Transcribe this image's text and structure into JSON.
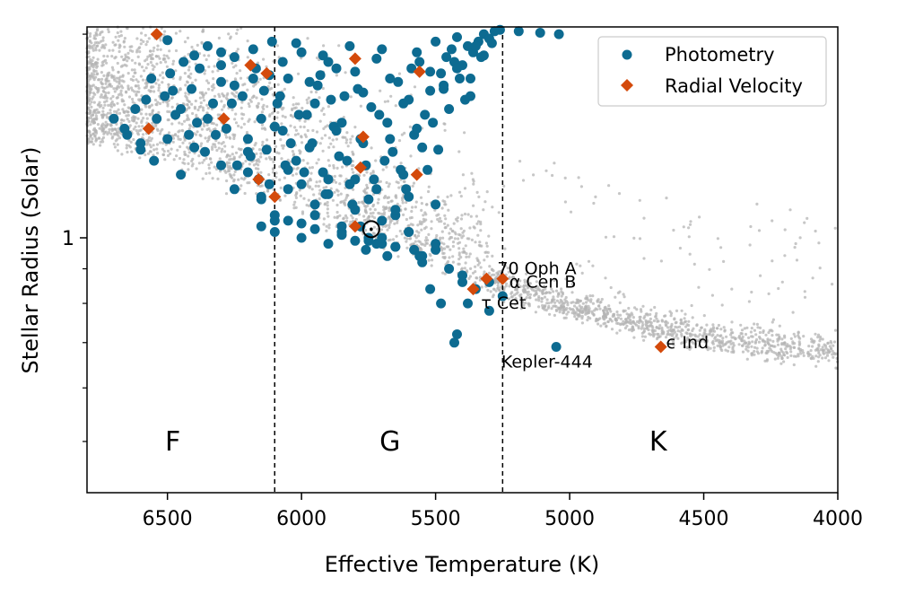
{
  "chart_data": {
    "type": "scatter",
    "xlabel": "Effective Temperature (K)",
    "ylabel": "Stellar Radius (Solar)",
    "xlim": [
      6800,
      4000
    ],
    "ylim": [
      0.42,
      2.05
    ],
    "y_scale": "log",
    "x_ticks": [
      6500,
      6000,
      5500,
      5000,
      4500,
      4000
    ],
    "y_major_ticks": [
      {
        "value": 1,
        "label": "1"
      }
    ],
    "y_minor_ticks": [
      0.5,
      0.6,
      0.7,
      0.8,
      0.9,
      2.0
    ],
    "grid": false,
    "legend": {
      "placement": "top-right",
      "entries": [
        {
          "label": "Photometry",
          "marker": "circle",
          "color": "#0d6b91"
        },
        {
          "label": "Radial Velocity",
          "marker": "diamond",
          "color": "#d44a0b"
        }
      ]
    },
    "colors": {
      "photometry": "#0d6b91",
      "radial_velocity": "#d44a0b",
      "background": "#b4b4b4"
    },
    "spectral_boundaries": [
      6100,
      5250
    ],
    "region_labels": [
      {
        "text": "F",
        "x": 6480,
        "y": 0.5
      },
      {
        "text": "G",
        "x": 5670,
        "y": 0.5
      },
      {
        "text": "K",
        "x": 4670,
        "y": 0.5
      }
    ],
    "sun": {
      "x": 5740,
      "y": 1.03
    },
    "background_stars": {
      "description": "dense field sample",
      "tracks": [
        {
          "x": [
            6800,
            6500,
            6300,
            6100,
            5900,
            5750,
            5600,
            5450,
            5300,
            5150,
            5000,
            4800,
            4600,
            4400,
            4200,
            4000
          ],
          "y": [
            1.4,
            1.3,
            1.22,
            1.13,
            1.05,
            1.0,
            0.96,
            0.9,
            0.85,
            0.8,
            0.77,
            0.74,
            0.71,
            0.69,
            0.67,
            0.66
          ]
        }
      ]
    },
    "series": [
      {
        "name": "Photometry",
        "marker": "circle",
        "color": "#0d6b91",
        "x": [
          6620,
          6580,
          6490,
          6470,
          6440,
          6410,
          6390,
          6350,
          6330,
          6300,
          6280,
          6250,
          6220,
          6200,
          6170,
          6150,
          6130,
          6110,
          6090,
          6070,
          6050,
          6020,
          6000,
          5980,
          5960,
          5940,
          5920,
          5900,
          5880,
          5860,
          5840,
          5820,
          5800,
          5780,
          5760,
          5740,
          5720,
          5700,
          5680,
          5660,
          5640,
          5620,
          5600,
          5580,
          5560,
          5540,
          5520,
          5500,
          5480,
          5460,
          5440,
          5420,
          5400,
          5380,
          5360,
          5340,
          5320,
          5300,
          5280,
          5260,
          6560,
          6510,
          6450,
          6380,
          6320,
          6260,
          6190,
          6160,
          6140,
          6100,
          6060,
          6010,
          5970,
          5930,
          5890,
          5850,
          5810,
          5770,
          5730,
          5690,
          5650,
          5610,
          5570,
          5530,
          5490,
          5450,
          5410,
          5370,
          5330,
          5290,
          6660,
          6600,
          6540,
          6480,
          6420,
          6360,
          6300,
          6240,
          6180,
          6120,
          6080,
          6040,
          5990,
          5950,
          5910,
          5870,
          5830,
          5790,
          5750,
          5710,
          5670,
          5630,
          5590,
          5550,
          5510,
          5470,
          5430,
          5390,
          5350,
          6200,
          6150,
          6100,
          6050,
          6000,
          5950,
          5900,
          5850,
          5800,
          5750,
          5700,
          5650,
          5600,
          5550,
          5500,
          6500,
          6400,
          6300,
          6250,
          6180,
          6120,
          6070,
          6020,
          5970,
          5920,
          5870,
          5820,
          5770,
          5720,
          5670,
          5620,
          5570,
          5520,
          5470,
          5420,
          5370,
          5320,
          6700,
          6650,
          6600,
          6550,
          6500,
          6450,
          6400,
          6350,
          6300,
          6250,
          6200,
          6150,
          6100,
          6050,
          6000,
          5950,
          5900,
          5850,
          5800,
          5750,
          5700,
          5650,
          5600,
          5550,
          5500,
          5450,
          5400,
          5350,
          5300,
          5250,
          5190,
          5110,
          5040,
          5520,
          5480,
          5420,
          5400,
          5380,
          5300,
          5430,
          5050,
          6150,
          6100,
          6050,
          6000,
          5950,
          5900,
          5850,
          5800,
          5780,
          5760,
          5720,
          5700,
          5680,
          5650,
          5600,
          5580,
          5560,
          5500
        ],
        "y": [
          1.55,
          1.6,
          1.75,
          1.52,
          1.82,
          1.66,
          1.48,
          1.92,
          1.58,
          1.7,
          1.45,
          1.85,
          1.62,
          1.4,
          1.78,
          1.5,
          1.35,
          1.95,
          1.58,
          1.44,
          1.72,
          1.3,
          1.88,
          1.52,
          1.38,
          1.68,
          1.25,
          1.82,
          1.46,
          1.32,
          1.62,
          1.2,
          1.76,
          1.4,
          1.28,
          1.56,
          1.18,
          1.9,
          1.48,
          1.34,
          1.7,
          1.24,
          1.6,
          1.42,
          1.82,
          1.52,
          1.65,
          1.95,
          1.75,
          1.85,
          1.9,
          1.98,
          1.8,
          1.92,
          1.88,
          1.95,
          2.0,
          1.97,
          2.02,
          2.03,
          1.72,
          1.62,
          1.55,
          1.78,
          1.42,
          1.58,
          1.32,
          1.22,
          1.65,
          1.46,
          1.28,
          1.52,
          1.36,
          1.74,
          1.6,
          1.48,
          1.12,
          1.38,
          1.22,
          1.3,
          1.08,
          1.18,
          1.45,
          1.26,
          1.35,
          1.55,
          1.72,
          1.62,
          1.85,
          1.94,
          1.45,
          1.38,
          1.5,
          1.65,
          1.42,
          1.34,
          1.88,
          1.28,
          1.72,
          1.2,
          1.62,
          1.38,
          1.25,
          1.58,
          1.16,
          1.44,
          1.3,
          1.66,
          1.14,
          1.52,
          1.4,
          1.26,
          1.78,
          1.36,
          1.48,
          1.68,
          1.82,
          1.6,
          1.92,
          1.25,
          1.15,
          1.08,
          1.18,
          1.05,
          1.12,
          1.22,
          1.02,
          1.1,
          0.99,
          1.06,
          0.97,
          1.15,
          0.92,
          1.12,
          1.96,
          1.86,
          1.8,
          1.68,
          1.9,
          1.74,
          1.82,
          1.94,
          1.7,
          1.86,
          1.78,
          1.92,
          1.64,
          1.84,
          1.72,
          1.58,
          1.88,
          1.76,
          1.66,
          1.78,
          1.72,
          1.86,
          1.5,
          1.42,
          1.35,
          1.3,
          1.4,
          1.24,
          1.36,
          1.5,
          1.28,
          1.18,
          1.34,
          1.14,
          1.06,
          1.26,
          1.2,
          1.08,
          1.16,
          1.04,
          1.22,
          1.0,
          0.98,
          1.1,
          1.02,
          0.94,
          0.96,
          0.9,
          0.88,
          0.84,
          0.86,
          0.82,
          2.02,
          2.01,
          2.0,
          0.84,
          0.8,
          0.72,
          0.86,
          0.8,
          0.78,
          0.7,
          0.69,
          1.04,
          1.02,
          1.06,
          1.0,
          1.03,
          0.98,
          1.01,
          0.99,
          1.04,
          0.96,
          0.98,
          1.0,
          0.94,
          0.97,
          1.02,
          0.96,
          0.94,
          0.98
        ]
      },
      {
        "name": "Radial Velocity",
        "marker": "diamond",
        "color": "#d44a0b",
        "x": [
          6540,
          6570,
          6290,
          6190,
          6160,
          6130,
          6100,
          5800,
          5770,
          5780,
          5560,
          5570,
          5800,
          5360,
          5310,
          5250,
          4660
        ],
        "y": [
          2.0,
          1.45,
          1.5,
          1.8,
          1.22,
          1.75,
          1.15,
          1.84,
          1.41,
          1.27,
          1.76,
          1.24,
          1.04,
          0.84,
          0.87,
          0.87,
          0.69
        ]
      }
    ],
    "annotations": [
      {
        "text": "70 Oph A",
        "x": 5270,
        "y": 0.9
      },
      {
        "text": "α Cen B",
        "x": 5225,
        "y": 0.86
      },
      {
        "text": "τ Cet",
        "x": 5330,
        "y": 0.8
      },
      {
        "text": "Kepler-444",
        "x": 5255,
        "y": 0.655
      },
      {
        "text": "ϵ Ind",
        "x": 4640,
        "y": 0.7
      }
    ]
  }
}
